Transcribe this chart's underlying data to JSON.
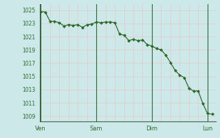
{
  "background_color": "#cce8e8",
  "plot_bg_color": "#cce8e8",
  "line_color": "#2d6a2d",
  "marker_color": "#2d6a2d",
  "grid_color_day": "#336633",
  "grid_color_minor_v": "#e8c8c8",
  "grid_color_minor_h": "#e8c8c8",
  "tick_label_color": "#2d6a2d",
  "axis_label_color": "#2d6a2d",
  "y_ticks": [
    1009,
    1011,
    1013,
    1015,
    1017,
    1019,
    1021,
    1023,
    1025
  ],
  "ylim": [
    1008.2,
    1025.9
  ],
  "day_labels": [
    "Ven",
    "Sam",
    "Dim",
    "Lun"
  ],
  "day_positions": [
    0,
    24,
    48,
    72
  ],
  "x_values": [
    0,
    2,
    4,
    6,
    8,
    10,
    12,
    14,
    16,
    18,
    20,
    22,
    24,
    26,
    28,
    30,
    32,
    34,
    36,
    38,
    40,
    42,
    44,
    46,
    48,
    50,
    52,
    54,
    56,
    58,
    60,
    62,
    64,
    66,
    68,
    70,
    72,
    74
  ],
  "y_values": [
    1024.8,
    1024.7,
    1023.3,
    1023.3,
    1023.1,
    1022.6,
    1022.8,
    1022.7,
    1022.8,
    1022.4,
    1022.8,
    1022.9,
    1023.2,
    1023.1,
    1023.2,
    1023.2,
    1023.1,
    1021.4,
    1021.2,
    1020.4,
    1020.6,
    1020.4,
    1020.5,
    1019.8,
    1019.6,
    1019.2,
    1019.0,
    1018.2,
    1017.1,
    1015.9,
    1015.2,
    1014.8,
    1013.2,
    1012.8,
    1012.8,
    1010.9,
    1009.4,
    1009.3
  ],
  "xlim": [
    -0.5,
    75.5
  ]
}
